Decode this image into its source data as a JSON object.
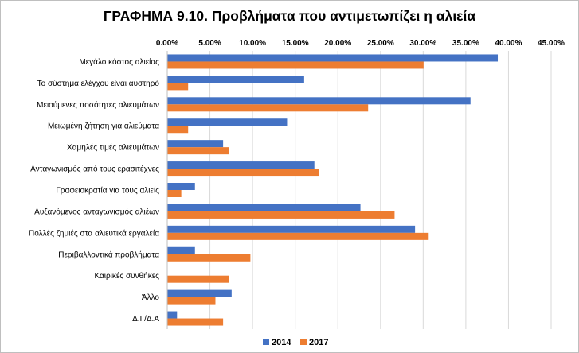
{
  "chart_data": {
    "type": "bar",
    "orientation": "horizontal",
    "title": "ΓΡΑΦΗΜΑ 9.10. Προβλήματα που αντιμετωπίζει η αλιεία",
    "xlabel": "",
    "ylabel": "",
    "xlim": [
      0,
      45
    ],
    "x_ticks": [
      "0.00%",
      "5.00%",
      "10.00%",
      "15.00%",
      "20.00%",
      "25.00%",
      "30.00%",
      "35.00%",
      "40.00%",
      "45.00%"
    ],
    "x_axis_position": "top",
    "grid": true,
    "legend_position": "bottom",
    "categories": [
      "Μεγάλο κόστος αλιείας",
      "Το σύστημα ελέγχου είναι αυστηρό",
      "Μειούμενες ποσότητες αλιευμάτων",
      "Μειωμένη ζήτηση για αλιεύματα",
      "Χαμηλές τιμές αλιευμάτων",
      "Ανταγωνισμός από τους ερασιτέχνες",
      "Γραφειοκρατία για τους αλιείς",
      "Αυξανόμενος ανταγωνισμός αλιέων",
      "Πολλές ζημιές στα αλιευτικά εργαλεία",
      "Περιβαλλοντικά προβλήματα",
      "Καιρικές συνθήκες",
      "Άλλο",
      "Δ.Γ/Δ.Α"
    ],
    "series": [
      {
        "name": "2014",
        "color": "#4472C4",
        "values": [
          38.7,
          16.0,
          35.5,
          14.0,
          6.5,
          17.2,
          3.2,
          22.6,
          29.0,
          3.2,
          0.0,
          7.5,
          1.1
        ]
      },
      {
        "name": "2017",
        "color": "#ED7D31",
        "values": [
          30.0,
          2.4,
          23.5,
          2.4,
          7.2,
          17.7,
          1.6,
          26.6,
          30.6,
          9.7,
          7.2,
          5.6,
          6.5
        ]
      }
    ]
  }
}
